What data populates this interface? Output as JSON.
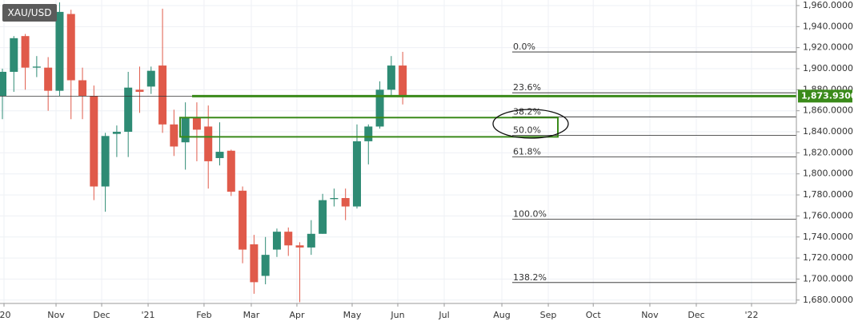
{
  "chart_data": {
    "type": "candlestick",
    "symbol": "XAU/USD",
    "categories": [
      null,
      null,
      null,
      null,
      null,
      null,
      null,
      null,
      null,
      null,
      null,
      null,
      null,
      null,
      null,
      null,
      null,
      null,
      null,
      null,
      null,
      null,
      null,
      null,
      null,
      null,
      null,
      null,
      null,
      null,
      null,
      null,
      null,
      null,
      null,
      null
    ],
    "open": [
      1874,
      1897,
      1931,
      1901,
      1901,
      1879,
      1952,
      1889,
      1874,
      1788,
      1838,
      1840,
      1880,
      1883,
      1903,
      1847,
      1830,
      1853,
      1845,
      1815,
      1822,
      1784,
      1733,
      1703,
      1728,
      1745,
      1732,
      1730,
      1743,
      1776,
      1777,
      1769,
      1831,
      1845,
      1880,
      1903
    ],
    "high": [
      1900,
      1931,
      1933,
      1912,
      1911,
      1963,
      1956,
      1901,
      1884,
      1839,
      1846,
      1897,
      1902,
      1902,
      1957,
      1861,
      1868,
      1868,
      1865,
      1849,
      1823,
      1788,
      1742,
      1740,
      1748,
      1749,
      1735,
      1756,
      1781,
      1786,
      1786,
      1847,
      1847,
      1888,
      1912,
      1916
    ],
    "low": [
      1852,
      1878,
      1880,
      1892,
      1860,
      1874,
      1852,
      1852,
      1775,
      1764,
      1816,
      1816,
      1858,
      1876,
      1839,
      1817,
      1804,
      1812,
      1786,
      1808,
      1779,
      1715,
      1686,
      1695,
      1721,
      1722,
      1678,
      1723,
      1743,
      1769,
      1756,
      1767,
      1809,
      1843,
      1873,
      1866
    ],
    "close": [
      1897,
      1929,
      1901,
      1902,
      1879,
      1954,
      1889,
      1874,
      1788,
      1836,
      1840,
      1882,
      1878,
      1898,
      1847,
      1826,
      1853,
      1842,
      1812,
      1821,
      1783,
      1728,
      1697,
      1723,
      1745,
      1732,
      1730,
      1743,
      1775,
      1777,
      1769,
      1831,
      1845,
      1880,
      1903,
      1873
    ],
    "up_color": "#2e8b74",
    "down_color": "#e05a4a",
    "xlim": [
      -0.21,
      69.42
    ],
    "xticks": [
      {
        "value": 0.14,
        "label": "'20"
      },
      {
        "value": 4.69,
        "label": "Nov"
      },
      {
        "value": 8.68,
        "label": "Dec"
      },
      {
        "value": 12.74,
        "label": "'21"
      },
      {
        "value": 17.63,
        "label": "Feb"
      },
      {
        "value": 21.76,
        "label": "Mar"
      },
      {
        "value": 25.75,
        "label": "Apr"
      },
      {
        "value": 30.58,
        "label": "May"
      },
      {
        "value": 34.57,
        "label": "Jun"
      },
      {
        "value": 38.63,
        "label": "Jul"
      },
      {
        "value": 43.67,
        "label": "Aug"
      },
      {
        "value": 47.73,
        "label": "Sep"
      },
      {
        "value": 51.66,
        "label": "Oct"
      },
      {
        "value": 56.61,
        "label": "Nov"
      },
      {
        "value": 60.67,
        "label": "Dec"
      },
      {
        "value": 65.5,
        "label": "'22"
      }
    ],
    "ylim": [
      1676.8,
      1965.3
    ],
    "yticks": [
      {
        "value": 1960,
        "label": "1,960.0000"
      },
      {
        "value": 1940,
        "label": "1,940.0000"
      },
      {
        "value": 1920,
        "label": "1,920.0000"
      },
      {
        "value": 1900,
        "label": "1,900.0000"
      },
      {
        "value": 1880,
        "label": "1,880.0000"
      },
      {
        "value": 1860,
        "label": "1,860.0000"
      },
      {
        "value": 1840,
        "label": "1,840.0000"
      },
      {
        "value": 1820,
        "label": "1,820.0000"
      },
      {
        "value": 1800,
        "label": "1,800.0000"
      },
      {
        "value": 1780,
        "label": "1,780.0000"
      },
      {
        "value": 1760,
        "label": "1,760.0000"
      },
      {
        "value": 1740,
        "label": "1,740.0000"
      },
      {
        "value": 1720,
        "label": "1,720.0000"
      },
      {
        "value": 1700,
        "label": "1,700.0000"
      },
      {
        "value": 1680,
        "label": "1,680.0000"
      }
    ],
    "grid": true,
    "price_line": {
      "value": 1873.93,
      "label": "1,873.9300",
      "color": "#3a8a1a"
    },
    "zone": {
      "low": 1835.2,
      "high": 1853.5,
      "color": "#3a8a1a"
    },
    "fib_levels": [
      {
        "value": 1915.9,
        "label": "0.0%"
      },
      {
        "value": 1877.1,
        "label": "23.6%"
      },
      {
        "value": 1854.2,
        "label": "38.2%"
      },
      {
        "value": 1836.7,
        "label": "50.0%"
      },
      {
        "value": 1816.2,
        "label": "61.8%"
      },
      {
        "value": 1756.9,
        "label": "100.0%"
      },
      {
        "value": 1696.7,
        "label": "138.2%"
      }
    ]
  }
}
